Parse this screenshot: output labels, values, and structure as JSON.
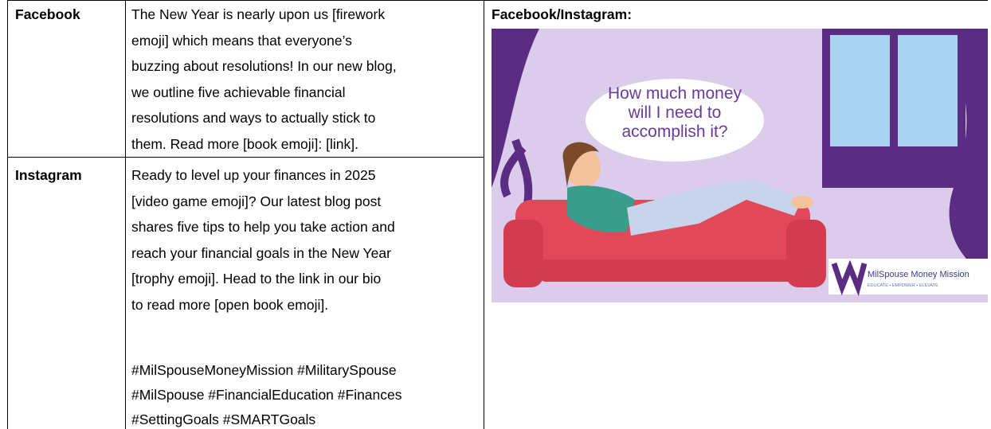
{
  "table": {
    "rows": [
      {
        "platform": "Facebook",
        "lines": [
          "The New Year is nearly upon us [firework",
          "emoji] which means that everyone’s",
          "buzzing about resolutions! In our new blog,",
          "we outline five achievable financial",
          "resolutions and ways to actually stick to",
          "them. Read more [book emoji]: [link]."
        ]
      },
      {
        "platform": "Instagram",
        "lines": [
          "Ready to level up your finances in 2025",
          "[video game emoji]? Our latest blog post",
          "shares five tips to help you take action and",
          "reach your financial goals in the New Year",
          "[trophy emoji]. Head to the link in our bio",
          "to read more [open book emoji]."
        ],
        "hashtag_lines": [
          "#MilSpouseMoneyMission #MilitarySpouse",
          "#MilSpouse #FinancialEducation #Finances",
          "#SettingGoals #SMARTGoals"
        ]
      }
    ],
    "image_header": "Facebook/Instagram:",
    "image": {
      "bubble_lines": [
        "How much money",
        "will I need to",
        "accomplish it?"
      ],
      "logo_name": "MilSpouse Money Mission",
      "logo_tagline": "EDUCATE • EMPOWER • ELEVATE"
    }
  }
}
